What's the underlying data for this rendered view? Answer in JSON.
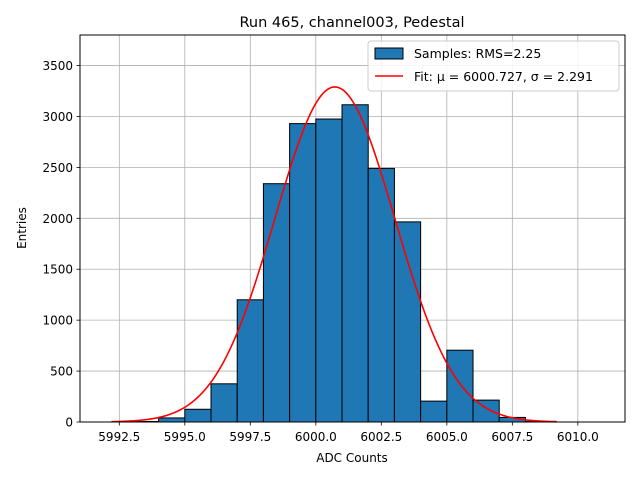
{
  "chart_data": {
    "type": "bar",
    "title": "Run 465, channel003, Pedestal",
    "xlabel": "ADC Counts",
    "ylabel": "Entries",
    "xlim": [
      5991.0,
      6011.8
    ],
    "ylim": [
      0,
      3800
    ],
    "xticks": [
      5992.5,
      5995.0,
      5997.5,
      6000.0,
      6002.5,
      6005.0,
      6007.5,
      6010.0
    ],
    "xtick_labels": [
      "5992.5",
      "5995.0",
      "5997.5",
      "6000.0",
      "6002.5",
      "6005.0",
      "6007.5",
      "6010.0"
    ],
    "yticks": [
      0,
      500,
      1000,
      1500,
      2000,
      2500,
      3000,
      3500
    ],
    "ytick_labels": [
      "0",
      "500",
      "1000",
      "1500",
      "2000",
      "2500",
      "3000",
      "3500"
    ],
    "grid": true,
    "legend_position": "top-right",
    "colors": {
      "bar_fill": "#1f77b4",
      "bar_edge": "#000000",
      "fit_line": "#ff0000",
      "grid": "#b0b0b0"
    },
    "series": [
      {
        "name": "Samples: RMS=2.25",
        "type": "histogram",
        "bins": [
          {
            "x0": 5993.0,
            "x1": 5994.0,
            "value": 5
          },
          {
            "x0": 5994.0,
            "x1": 5995.0,
            "value": 40
          },
          {
            "x0": 5995.0,
            "x1": 5996.0,
            "value": 125
          },
          {
            "x0": 5996.0,
            "x1": 5997.0,
            "value": 375
          },
          {
            "x0": 5997.0,
            "x1": 5998.0,
            "value": 1200
          },
          {
            "x0": 5998.0,
            "x1": 5999.0,
            "value": 2340
          },
          {
            "x0": 5999.0,
            "x1": 6000.0,
            "value": 2930
          },
          {
            "x0": 6000.0,
            "x1": 6001.0,
            "value": 2975
          },
          {
            "x0": 6001.0,
            "x1": 6002.0,
            "value": 3115
          },
          {
            "x0": 6002.0,
            "x1": 6003.0,
            "value": 2490
          },
          {
            "x0": 6003.0,
            "x1": 6004.0,
            "value": 1965
          },
          {
            "x0": 6004.0,
            "x1": 6005.0,
            "value": 205
          },
          {
            "x0": 6005.0,
            "x1": 6006.0,
            "value": 705
          },
          {
            "x0": 6006.0,
            "x1": 6007.0,
            "value": 215
          },
          {
            "x0": 6007.0,
            "x1": 6008.0,
            "value": 45
          },
          {
            "x0": 6008.0,
            "x1": 6009.0,
            "value": 5
          }
        ]
      },
      {
        "name": "Fit: μ = 6000.727, σ = 2.291",
        "type": "line",
        "mu": 6000.727,
        "sigma": 2.291,
        "amplitude": 3290,
        "x_range": [
          5992.2,
          6009.2
        ]
      }
    ]
  }
}
